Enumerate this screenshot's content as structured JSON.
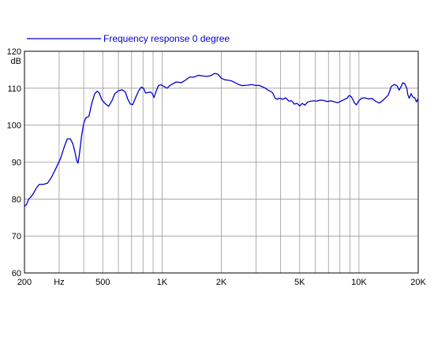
{
  "chart_data": {
    "type": "line",
    "title": "",
    "xlabel": "",
    "ylabel": "dB",
    "x_scale": "log",
    "xlim": [
      200,
      20000
    ],
    "ylim": [
      60,
      120
    ],
    "grid": true,
    "legend_position": "top-left",
    "colors": {
      "series": "#0000cc",
      "grid": "#999999",
      "frame": "#000000"
    },
    "x_tick_labels": [
      {
        "value": 200,
        "label": "200"
      },
      {
        "value": 300,
        "label": "Hz"
      },
      {
        "value": 500,
        "label": "500"
      },
      {
        "value": 1000,
        "label": "1K"
      },
      {
        "value": 2000,
        "label": "2K"
      },
      {
        "value": 5000,
        "label": "5K"
      },
      {
        "value": 10000,
        "label": "10K"
      },
      {
        "value": 20000,
        "label": "20K"
      }
    ],
    "x_gridlines": [
      300,
      400,
      500,
      600,
      700,
      800,
      900,
      1000,
      2000,
      3000,
      4000,
      5000,
      6000,
      7000,
      8000,
      9000,
      10000
    ],
    "y_ticks": [
      60,
      70,
      80,
      90,
      100,
      110,
      120
    ],
    "series": [
      {
        "name": "Frequency response 0 degree",
        "points": [
          [
            200,
            78
          ],
          [
            205,
            78.6
          ],
          [
            210,
            80
          ],
          [
            215,
            80.5
          ],
          [
            222,
            81.5
          ],
          [
            230,
            83
          ],
          [
            238,
            84
          ],
          [
            250,
            84
          ],
          [
            262,
            84.3
          ],
          [
            275,
            86
          ],
          [
            290,
            88.5
          ],
          [
            305,
            91
          ],
          [
            318,
            94
          ],
          [
            330,
            96.3
          ],
          [
            342,
            96.3
          ],
          [
            352,
            95
          ],
          [
            360,
            93
          ],
          [
            368,
            90.5
          ],
          [
            374,
            89.7
          ],
          [
            380,
            92
          ],
          [
            390,
            97
          ],
          [
            400,
            100.5
          ],
          [
            410,
            102
          ],
          [
            425,
            102.4
          ],
          [
            440,
            106
          ],
          [
            455,
            108.5
          ],
          [
            468,
            109.2
          ],
          [
            480,
            108.7
          ],
          [
            495,
            106.8
          ],
          [
            515,
            105.8
          ],
          [
            535,
            105.1
          ],
          [
            555,
            106.5
          ],
          [
            575,
            108.5
          ],
          [
            600,
            109.3
          ],
          [
            625,
            109.6
          ],
          [
            650,
            109
          ],
          [
            670,
            107
          ],
          [
            690,
            105.7
          ],
          [
            710,
            105.6
          ],
          [
            735,
            107.5
          ],
          [
            760,
            109.3
          ],
          [
            785,
            110.3
          ],
          [
            805,
            110
          ],
          [
            825,
            108.7
          ],
          [
            845,
            108.8
          ],
          [
            870,
            109
          ],
          [
            890,
            108.6
          ],
          [
            910,
            107.5
          ],
          [
            930,
            109
          ],
          [
            960,
            110.8
          ],
          [
            990,
            110.9
          ],
          [
            1020,
            110.5
          ],
          [
            1060,
            110
          ],
          [
            1100,
            110.8
          ],
          [
            1180,
            111.7
          ],
          [
            1250,
            111.5
          ],
          [
            1300,
            112
          ],
          [
            1380,
            113
          ],
          [
            1450,
            113
          ],
          [
            1530,
            113.5
          ],
          [
            1620,
            113.3
          ],
          [
            1700,
            113.2
          ],
          [
            1780,
            113.5
          ],
          [
            1850,
            114
          ],
          [
            1920,
            113.8
          ],
          [
            2000,
            112.7
          ],
          [
            2080,
            112.3
          ],
          [
            2150,
            112.2
          ],
          [
            2250,
            112
          ],
          [
            2350,
            111.5
          ],
          [
            2450,
            111
          ],
          [
            2550,
            110.7
          ],
          [
            2700,
            110.8
          ],
          [
            2850,
            111
          ],
          [
            3000,
            110.7
          ],
          [
            3100,
            110.8
          ],
          [
            3200,
            110.5
          ],
          [
            3350,
            110
          ],
          [
            3450,
            109.5
          ],
          [
            3550,
            109.2
          ],
          [
            3650,
            108.7
          ],
          [
            3750,
            107.3
          ],
          [
            3850,
            107
          ],
          [
            3950,
            107.3
          ],
          [
            4100,
            107
          ],
          [
            4250,
            107.4
          ],
          [
            4400,
            106.5
          ],
          [
            4550,
            106.6
          ],
          [
            4700,
            105.7
          ],
          [
            4850,
            105.9
          ],
          [
            5000,
            105.2
          ],
          [
            5150,
            105.9
          ],
          [
            5300,
            105.4
          ],
          [
            5500,
            106.3
          ],
          [
            5700,
            106.5
          ],
          [
            5900,
            106.6
          ],
          [
            6100,
            106.5
          ],
          [
            6350,
            106.8
          ],
          [
            6600,
            106.7
          ],
          [
            6900,
            106.4
          ],
          [
            7200,
            106.6
          ],
          [
            7500,
            106.3
          ],
          [
            7800,
            106.1
          ],
          [
            8100,
            106.5
          ],
          [
            8400,
            106.9
          ],
          [
            8700,
            107.3
          ],
          [
            8900,
            108
          ],
          [
            9100,
            107.8
          ],
          [
            9300,
            107
          ],
          [
            9500,
            106
          ],
          [
            9700,
            105.5
          ],
          [
            10000,
            106.6
          ],
          [
            10300,
            107.3
          ],
          [
            10700,
            107.4
          ],
          [
            11200,
            107.1
          ],
          [
            11700,
            107.2
          ],
          [
            12200,
            106.4
          ],
          [
            12700,
            106
          ],
          [
            13100,
            106.5
          ],
          [
            13600,
            107.3
          ],
          [
            14100,
            108.2
          ],
          [
            14600,
            110.5
          ],
          [
            15100,
            111
          ],
          [
            15600,
            110.7
          ],
          [
            16000,
            109.5
          ],
          [
            16400,
            110.5
          ],
          [
            16700,
            111.5
          ],
          [
            17100,
            111.2
          ],
          [
            17500,
            110
          ],
          [
            17700,
            108.3
          ],
          [
            18000,
            107.3
          ],
          [
            18400,
            108.5
          ],
          [
            18800,
            107.6
          ],
          [
            19200,
            107.4
          ],
          [
            19600,
            106.3
          ],
          [
            20000,
            107.2
          ]
        ]
      }
    ]
  }
}
